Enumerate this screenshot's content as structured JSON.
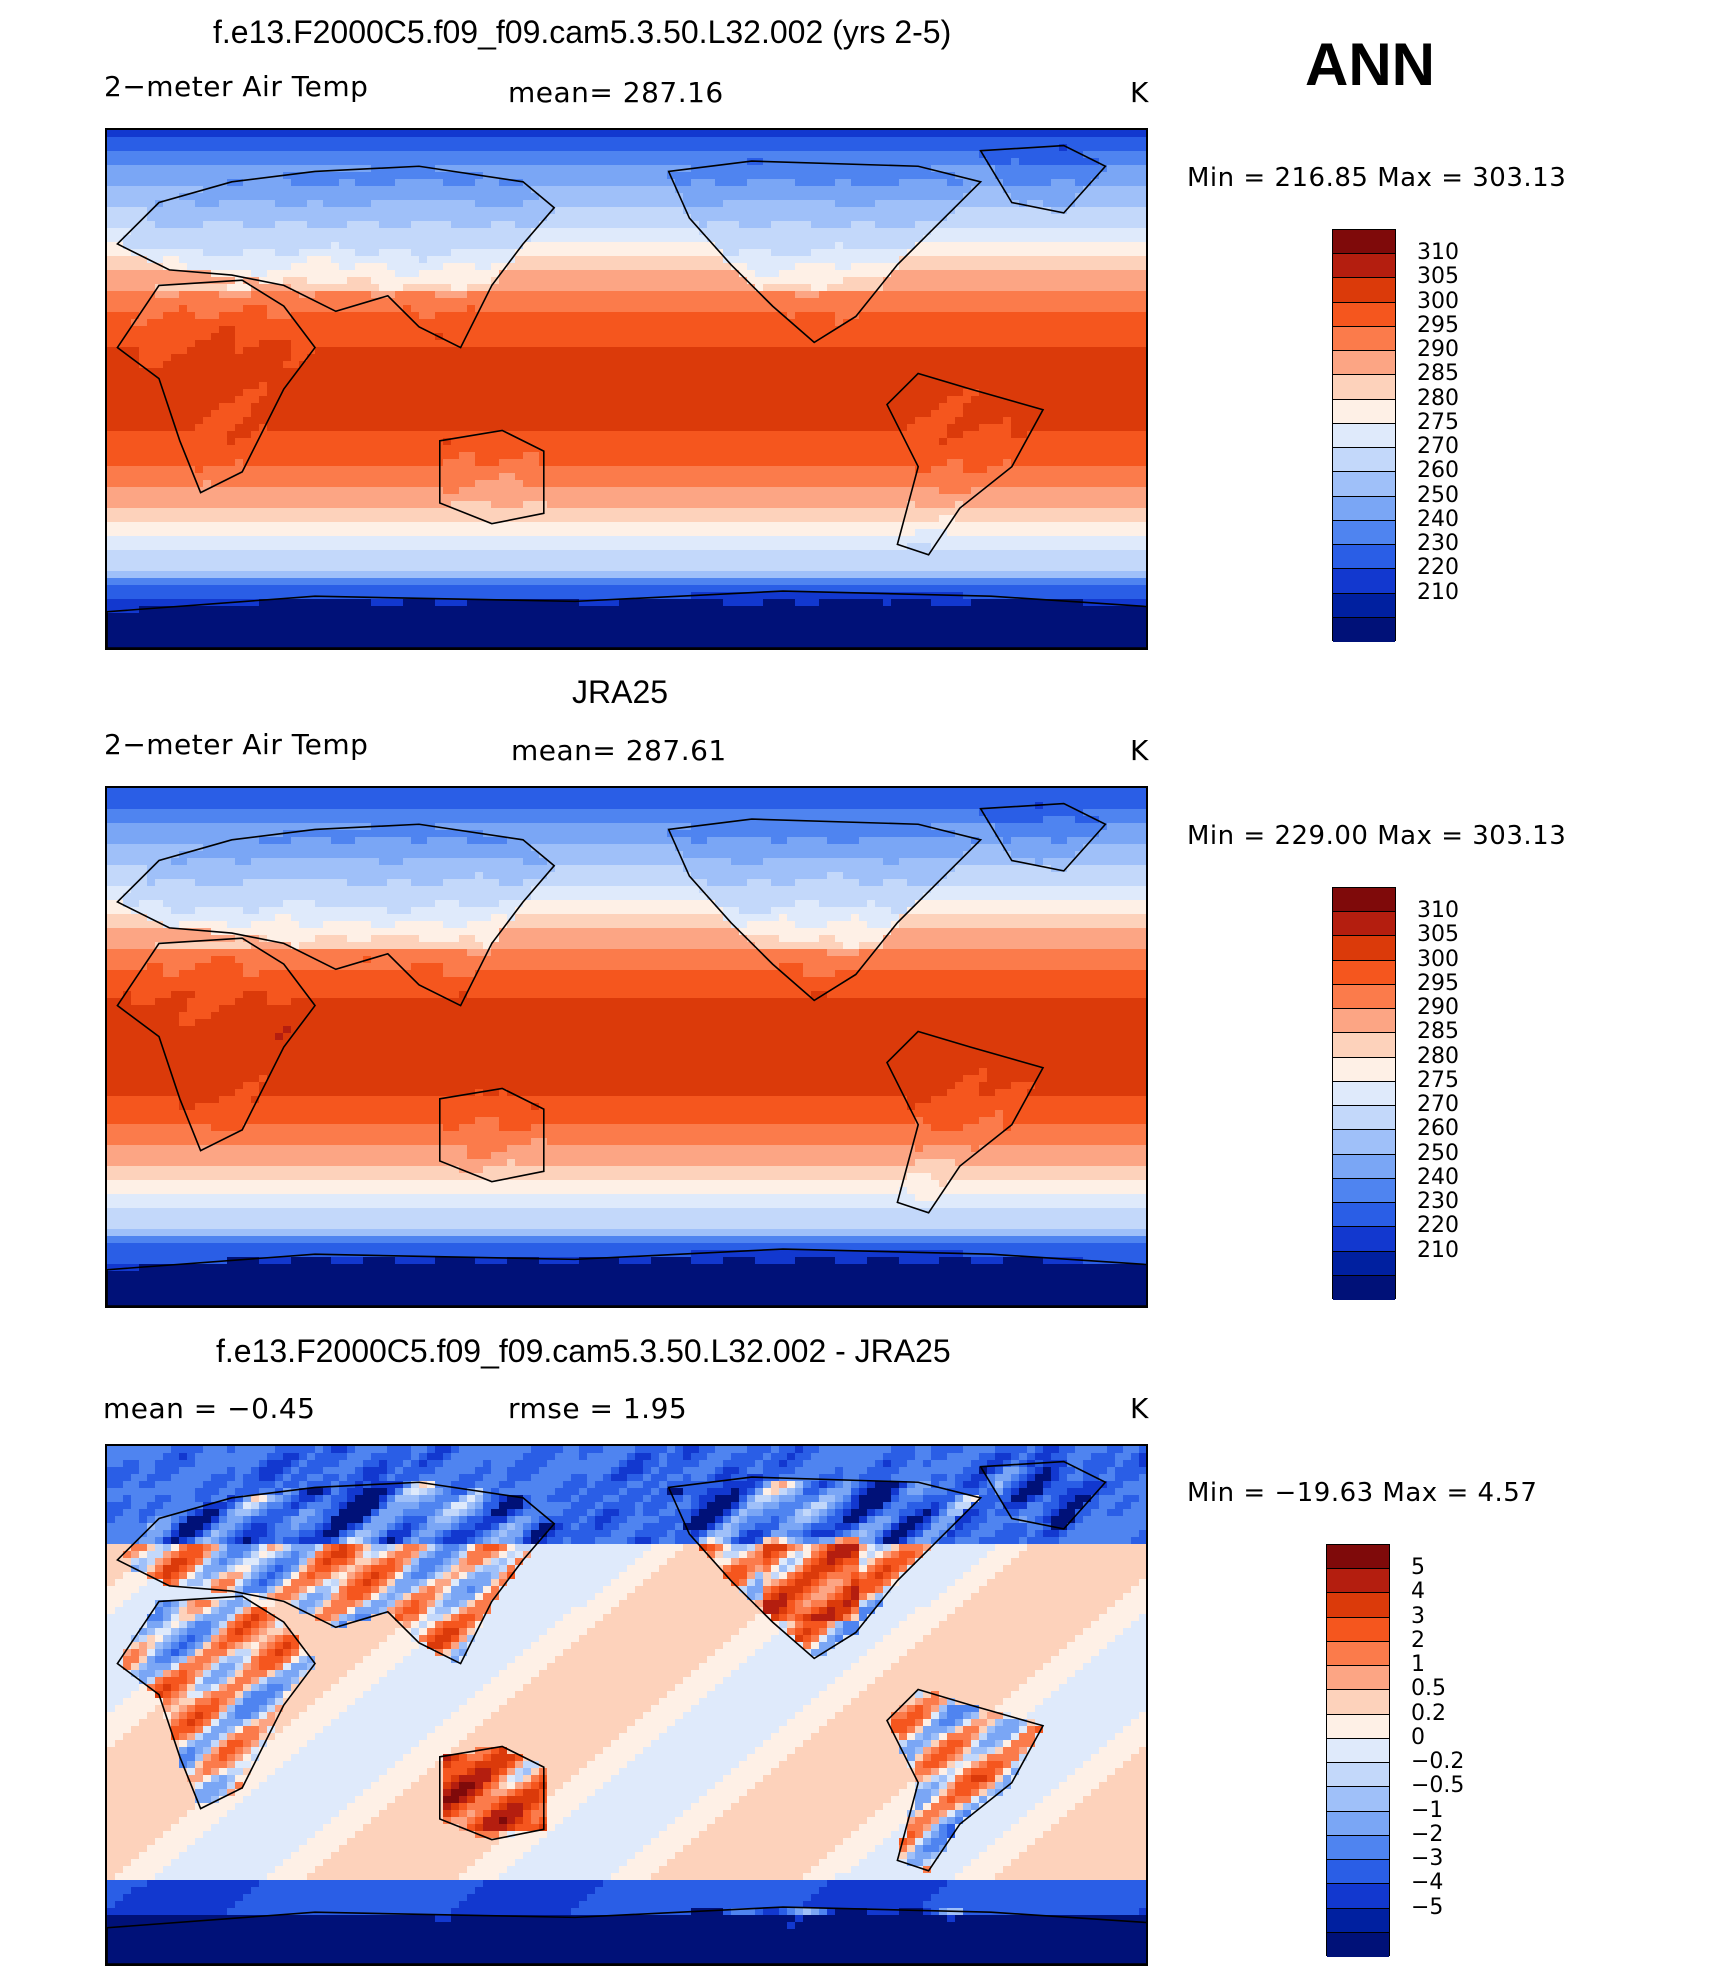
{
  "season": "ANN",
  "panels": [
    {
      "title": "f.e13.F2000C5.f09_f09.cam5.3.50.L32.002 (yrs 2-5)",
      "left_text": "2−meter Air Temp",
      "mid_text": "mean=  287.16",
      "units": "K",
      "minmax": "Min  =  216.85  Max  =  303.13",
      "colorbar": {
        "colors": [
          "#7f0a0a",
          "#b41e0f",
          "#db3a0a",
          "#f5561e",
          "#fb7b4b",
          "#fca584",
          "#fdd2bb",
          "#fef0e6",
          "#dfeafb",
          "#c3d8fa",
          "#9fc0f9",
          "#7aa6f5",
          "#4f84f0",
          "#2a5ee6",
          "#1238cf",
          "#0020a0",
          "#001178"
        ],
        "labels": [
          "310",
          "305",
          "300",
          "295",
          "290",
          "285",
          "280",
          "275",
          "270",
          "260",
          "250",
          "240",
          "230",
          "220",
          "210"
        ]
      },
      "field": "model"
    },
    {
      "title": "JRA25",
      "left_text": "2−meter Air Temp",
      "mid_text": "mean=  287.61",
      "units": "K",
      "minmax": "Min  =  229.00  Max  =  303.13",
      "colorbar": {
        "colors": [
          "#7f0a0a",
          "#b41e0f",
          "#db3a0a",
          "#f5561e",
          "#fb7b4b",
          "#fca584",
          "#fdd2bb",
          "#fef0e6",
          "#dfeafb",
          "#c3d8fa",
          "#9fc0f9",
          "#7aa6f5",
          "#4f84f0",
          "#2a5ee6",
          "#1238cf",
          "#0020a0",
          "#001178"
        ],
        "labels": [
          "310",
          "305",
          "300",
          "295",
          "290",
          "285",
          "280",
          "275",
          "270",
          "260",
          "250",
          "240",
          "230",
          "220",
          "210"
        ]
      },
      "field": "obs"
    },
    {
      "title": "f.e13.F2000C5.f09_f09.cam5.3.50.L32.002 - JRA25",
      "left_text": "mean  =    −0.45",
      "mid_text": "rmse  =      1.95",
      "units": "K",
      "minmax": "Min  =  −19.63  Max  =       4.57",
      "colorbar": {
        "colors": [
          "#7f0a0a",
          "#b41e0f",
          "#db3a0a",
          "#f5561e",
          "#fb7b4b",
          "#fca584",
          "#fdd2bb",
          "#fef0e6",
          "#dfeafb",
          "#c3d8fa",
          "#9fc0f9",
          "#7aa6f5",
          "#4f84f0",
          "#2a5ee6",
          "#1238cf",
          "#0020a0",
          "#001178"
        ],
        "labels": [
          "5",
          "4",
          "3",
          "2",
          "1",
          "0.5",
          "0.2",
          "0",
          "−0.2",
          "−0.5",
          "−1",
          "−2",
          "−3",
          "−4",
          "−5"
        ]
      },
      "field": "diff"
    }
  ]
}
